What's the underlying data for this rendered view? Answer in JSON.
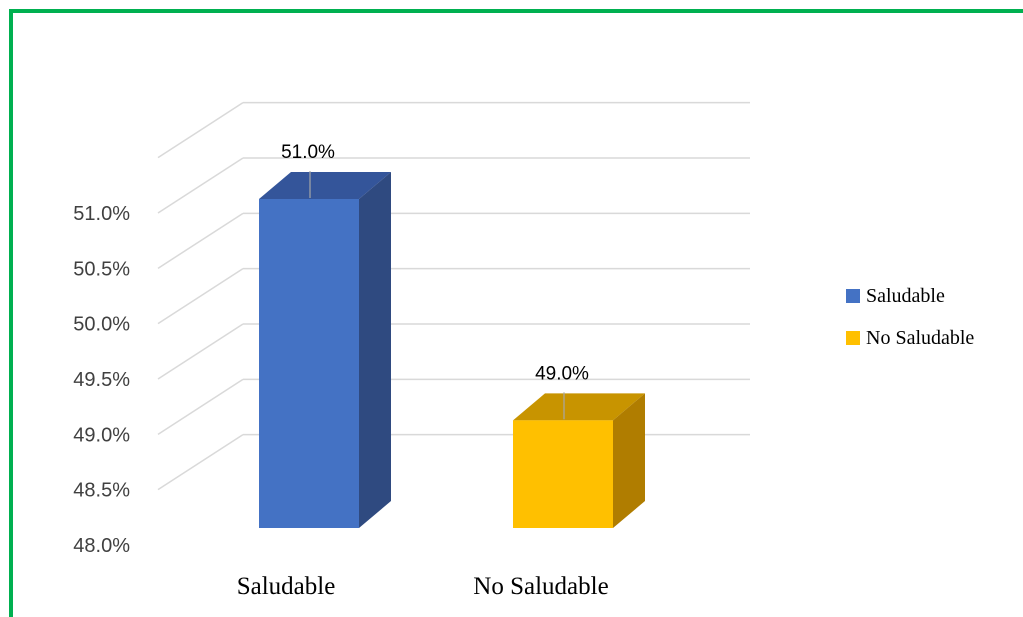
{
  "chart_data": {
    "type": "bar",
    "style": "3d",
    "categories": [
      "Saludable",
      "No Saludable"
    ],
    "values": [
      51.0,
      49.0
    ],
    "data_labels": [
      "51.0%",
      "49.0%"
    ],
    "y_ticks": [
      "48.0%",
      "48.5%",
      "49.0%",
      "49.5%",
      "50.0%",
      "50.5%",
      "51.0%"
    ],
    "ylim": [
      48.0,
      51.0
    ],
    "title": "",
    "xlabel": "",
    "ylabel": "",
    "grid": true,
    "legend_position": "right",
    "legend": [
      {
        "label": "Saludable",
        "color": "#4472c4"
      },
      {
        "label": "No Saludable",
        "color": "#ffc000"
      }
    ],
    "colors": {
      "front": [
        "#4472c4",
        "#ffc000"
      ],
      "side": [
        "#2f4a80",
        "#b07d00"
      ],
      "top": [
        "#34559a",
        "#c89400"
      ],
      "frame": "#00b050",
      "grid": "#d9d9d9"
    }
  }
}
